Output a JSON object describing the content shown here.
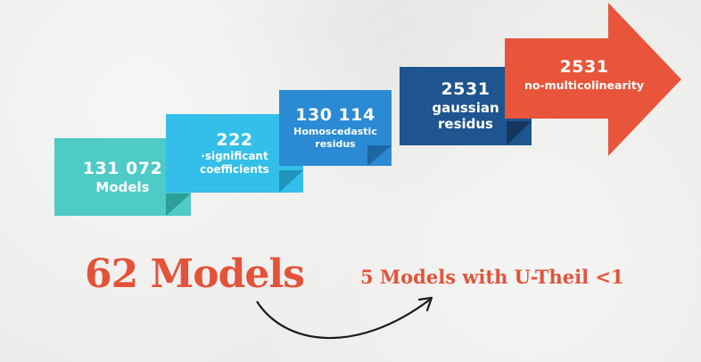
{
  "steps": [
    {
      "number": "131 072",
      "label": "Models",
      "color": "#4ecbc6"
    },
    {
      "number": "222",
      "label_line1": "·significant",
      "label_line2": "coefficients",
      "color": "#33bfe9"
    },
    {
      "number": "130 114",
      "label_line1": "Homoscedastic",
      "label_line2": "residus",
      "color": "#2a8ad3"
    },
    {
      "number": "2531",
      "label_line1": "gaussian",
      "label_line2": "residus",
      "color": "#1e548f"
    },
    {
      "number": "2531",
      "label": "no-multicolinearity",
      "color": "#e8553a"
    }
  ],
  "result": {
    "main": "62 Models",
    "final": "5 Models with U-Theil <1",
    "color": "#e3533a"
  },
  "connector": {
    "icon": "curved-arrow-icon"
  }
}
